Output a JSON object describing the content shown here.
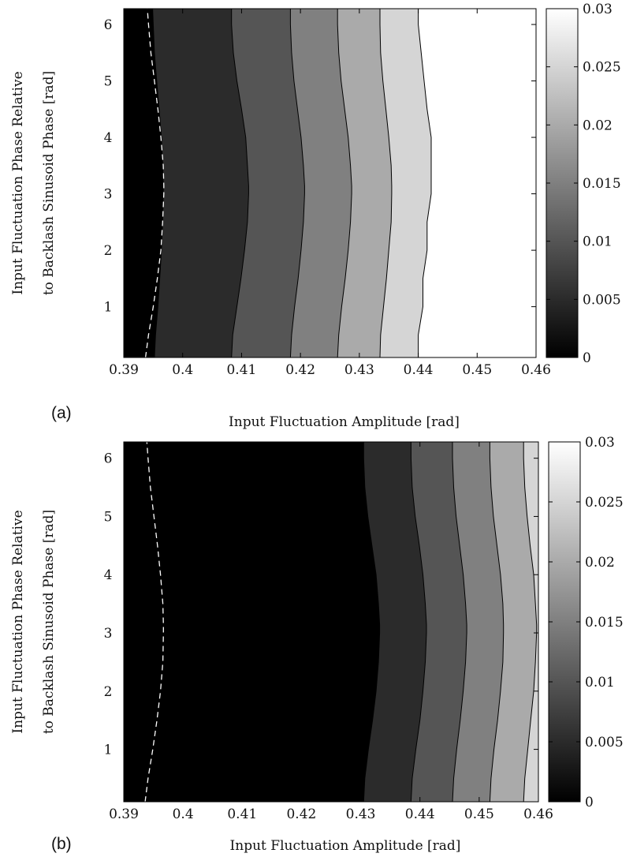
{
  "chart_data": [
    {
      "type": "contour",
      "panel_label": "(a)",
      "xlabel": "Input Fluctuation Amplitude [rad]",
      "ylabel_lines": [
        "Input Fluctuation Phase Relative",
        "to Backlash Sinusoid Phase [rad]"
      ],
      "xlim": [
        0.39,
        0.46
      ],
      "ylim": [
        0.1,
        6.28
      ],
      "x_ticks": [
        "0.39",
        "0.4",
        "0.41",
        "0.42",
        "0.43",
        "0.44",
        "0.45",
        "0.46"
      ],
      "y_ticks": [
        "1",
        "2",
        "3",
        "4",
        "5",
        "6"
      ],
      "colorbar": {
        "range": [
          0,
          0.03
        ],
        "ticks": [
          "0",
          "0.005",
          "0.01",
          "0.015",
          "0.02",
          "0.025",
          "0.03"
        ]
      },
      "levels": [
        0,
        0.005,
        0.01,
        0.015,
        0.02,
        0.025,
        0.03
      ],
      "y_samples": [
        0.1,
        0.5,
        1.0,
        1.5,
        2.0,
        2.5,
        3.0,
        3.14,
        3.5,
        4.0,
        4.5,
        5.0,
        5.5,
        6.0,
        6.28
      ],
      "boundaries": [
        {
          "level": 0.005,
          "x": [
            0.3952,
            0.3954,
            0.3958,
            0.3961,
            0.3964,
            0.3966,
            0.3967,
            0.3967,
            0.3966,
            0.3964,
            0.396,
            0.3956,
            0.3952,
            0.395,
            0.3949
          ]
        },
        {
          "level": 0.01,
          "x": [
            0.4083,
            0.4085,
            0.4092,
            0.4099,
            0.4105,
            0.411,
            0.4112,
            0.4112,
            0.411,
            0.4107,
            0.41,
            0.4092,
            0.4086,
            0.4083,
            0.4083
          ]
        },
        {
          "level": 0.015,
          "x": [
            0.4183,
            0.4185,
            0.419,
            0.4196,
            0.4201,
            0.4205,
            0.4207,
            0.4207,
            0.4205,
            0.4201,
            0.4195,
            0.4189,
            0.4185,
            0.4183,
            0.4183
          ]
        },
        {
          "level": 0.02,
          "x": [
            0.4263,
            0.4265,
            0.427,
            0.4276,
            0.4281,
            0.4285,
            0.4287,
            0.4287,
            0.4285,
            0.4281,
            0.4275,
            0.4269,
            0.4265,
            0.4263,
            0.4263
          ]
        },
        {
          "level": 0.025,
          "x": [
            0.4335,
            0.4336,
            0.4341,
            0.4346,
            0.435,
            0.4354,
            0.4355,
            0.4355,
            0.4354,
            0.435,
            0.4345,
            0.434,
            0.4336,
            0.4335,
            0.4335
          ]
        },
        {
          "level": 0.03,
          "x": [
            0.44,
            0.44,
            0.4408,
            0.4408,
            0.4415,
            0.4415,
            0.4422,
            0.4422,
            0.4422,
            0.4422,
            0.4415,
            0.441,
            0.4405,
            0.44,
            0.44
          ]
        }
      ],
      "dashed_curve": {
        "x": [
          0.3937,
          0.3942,
          0.395,
          0.3957,
          0.3963,
          0.3966,
          0.3968,
          0.3968,
          0.3967,
          0.3963,
          0.3958,
          0.3952,
          0.3946,
          0.3942,
          0.394
        ]
      }
    },
    {
      "type": "contour",
      "panel_label": "(b)",
      "xlabel": "Input Fluctuation Amplitude [rad]",
      "ylabel_lines": [
        "Input Fluctuation Phase Relative",
        "to Backlash Sinusoid Phase [rad]"
      ],
      "xlim": [
        0.39,
        0.46
      ],
      "ylim": [
        0.1,
        6.28
      ],
      "x_ticks": [
        "0.39",
        "0.4",
        "0.41",
        "0.42",
        "0.43",
        "0.44",
        "0.45",
        "0.46"
      ],
      "y_ticks": [
        "1",
        "2",
        "3",
        "4",
        "5",
        "6"
      ],
      "colorbar": {
        "range": [
          0,
          0.03
        ],
        "ticks": [
          "0",
          "0.005",
          "0.01",
          "0.015",
          "0.02",
          "0.025",
          "0.03"
        ]
      },
      "levels": [
        0,
        0.005,
        0.01,
        0.015,
        0.02,
        0.025,
        0.03
      ],
      "y_samples": [
        0.1,
        0.5,
        1.0,
        1.5,
        2.0,
        2.5,
        3.0,
        3.14,
        3.5,
        4.0,
        4.5,
        5.0,
        5.5,
        6.0,
        6.28
      ],
      "boundaries": [
        {
          "level": 0.005,
          "x": [
            0.4305,
            0.4307,
            0.4313,
            0.432,
            0.4326,
            0.433,
            0.4332,
            0.4332,
            0.433,
            0.4326,
            0.4319,
            0.4312,
            0.4307,
            0.4305,
            0.4305
          ]
        },
        {
          "level": 0.01,
          "x": [
            0.4385,
            0.4387,
            0.4393,
            0.44,
            0.4405,
            0.4409,
            0.4411,
            0.4411,
            0.4409,
            0.4405,
            0.4399,
            0.4392,
            0.4387,
            0.4385,
            0.4385
          ]
        },
        {
          "level": 0.015,
          "x": [
            0.4455,
            0.4457,
            0.4462,
            0.4468,
            0.4473,
            0.4477,
            0.4479,
            0.4479,
            0.4477,
            0.4473,
            0.4467,
            0.4461,
            0.4457,
            0.4455,
            0.4455
          ]
        },
        {
          "level": 0.02,
          "x": [
            0.4518,
            0.452,
            0.4525,
            0.4531,
            0.4536,
            0.454,
            0.4541,
            0.4541,
            0.454,
            0.4536,
            0.453,
            0.4524,
            0.452,
            0.4518,
            0.4518
          ]
        },
        {
          "level": 0.025,
          "x": [
            0.4575,
            0.4577,
            0.4582,
            0.4587,
            0.4592,
            0.4595,
            0.4597,
            0.4597,
            0.4595,
            0.4592,
            0.4586,
            0.4581,
            0.4577,
            0.4575,
            0.4575
          ]
        }
      ],
      "dashed_curve": {
        "x": [
          0.3936,
          0.3941,
          0.3949,
          0.3956,
          0.3962,
          0.3966,
          0.3967,
          0.3967,
          0.3966,
          0.3962,
          0.3957,
          0.3951,
          0.3945,
          0.3941,
          0.3939
        ]
      }
    }
  ]
}
